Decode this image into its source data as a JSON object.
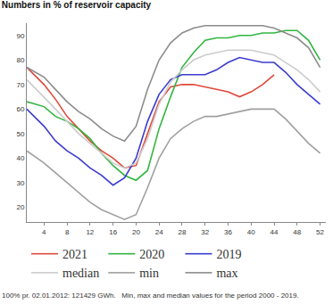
{
  "chart_data": {
    "type": "line",
    "title": "Numbers in % of reservoir capacity",
    "annotations": [
      "100% pr. 02.01.2012: 121429 GWh.   Min, max and median values for the period 2000 - 2019."
    ],
    "x": [
      1,
      4,
      6,
      8,
      10,
      12,
      14,
      16,
      18,
      20,
      22,
      24,
      26,
      28,
      30,
      32,
      34,
      36,
      38,
      40,
      42,
      44,
      46,
      48,
      50,
      52
    ],
    "series": [
      {
        "name": "2021",
        "color": "#e0483a",
        "values": [
          77,
          70,
          64,
          57,
          52,
          47,
          43,
          40,
          36,
          37,
          50,
          63,
          69,
          70,
          70,
          69,
          68,
          67,
          65,
          67,
          70,
          74,
          null,
          null,
          null,
          null
        ]
      },
      {
        "name": "2020",
        "color": "#33b540",
        "values": [
          63,
          61,
          57,
          55,
          52,
          48,
          42,
          37,
          33,
          31,
          35,
          52,
          65,
          77,
          83,
          88,
          89,
          89,
          90,
          90,
          91,
          91,
          92,
          92,
          88,
          80
        ]
      },
      {
        "name": "2019",
        "color": "#3b3bd0",
        "values": [
          60,
          53,
          47,
          43,
          40,
          36,
          33,
          29,
          32,
          40,
          55,
          66,
          72,
          74,
          74,
          74,
          76,
          79,
          81,
          80,
          79,
          79,
          75,
          70,
          66,
          62
        ]
      },
      {
        "name": "median",
        "color": "#cccccc",
        "values": [
          72,
          65,
          60,
          55,
          50,
          46,
          42,
          38,
          36,
          38,
          48,
          62,
          71,
          76,
          80,
          82,
          83,
          84,
          84,
          84,
          83,
          82,
          79,
          76,
          72,
          67
        ]
      },
      {
        "name": "min",
        "color": "#a0a0a0",
        "values": [
          43,
          38,
          34,
          30,
          26,
          22,
          19,
          17,
          15,
          17,
          28,
          40,
          48,
          52,
          55,
          57,
          57,
          58,
          59,
          60,
          60,
          60,
          56,
          51,
          46,
          42
        ]
      },
      {
        "name": "max",
        "color": "#8c8c8c",
        "values": [
          77,
          73,
          68,
          63,
          59,
          56,
          52,
          49,
          47,
          53,
          68,
          80,
          87,
          91,
          93,
          94,
          94,
          94,
          94,
          94,
          94,
          93,
          91,
          89,
          85,
          77
        ]
      }
    ],
    "xlim": [
      1,
      53
    ],
    "xticks": [
      4,
      8,
      12,
      16,
      20,
      24,
      28,
      32,
      36,
      40,
      44,
      48,
      52
    ],
    "ylim": [
      14,
      95
    ],
    "yticks": [
      20,
      30,
      40,
      50,
      60,
      70,
      80,
      90
    ],
    "grid": false,
    "legend": "bottom"
  }
}
